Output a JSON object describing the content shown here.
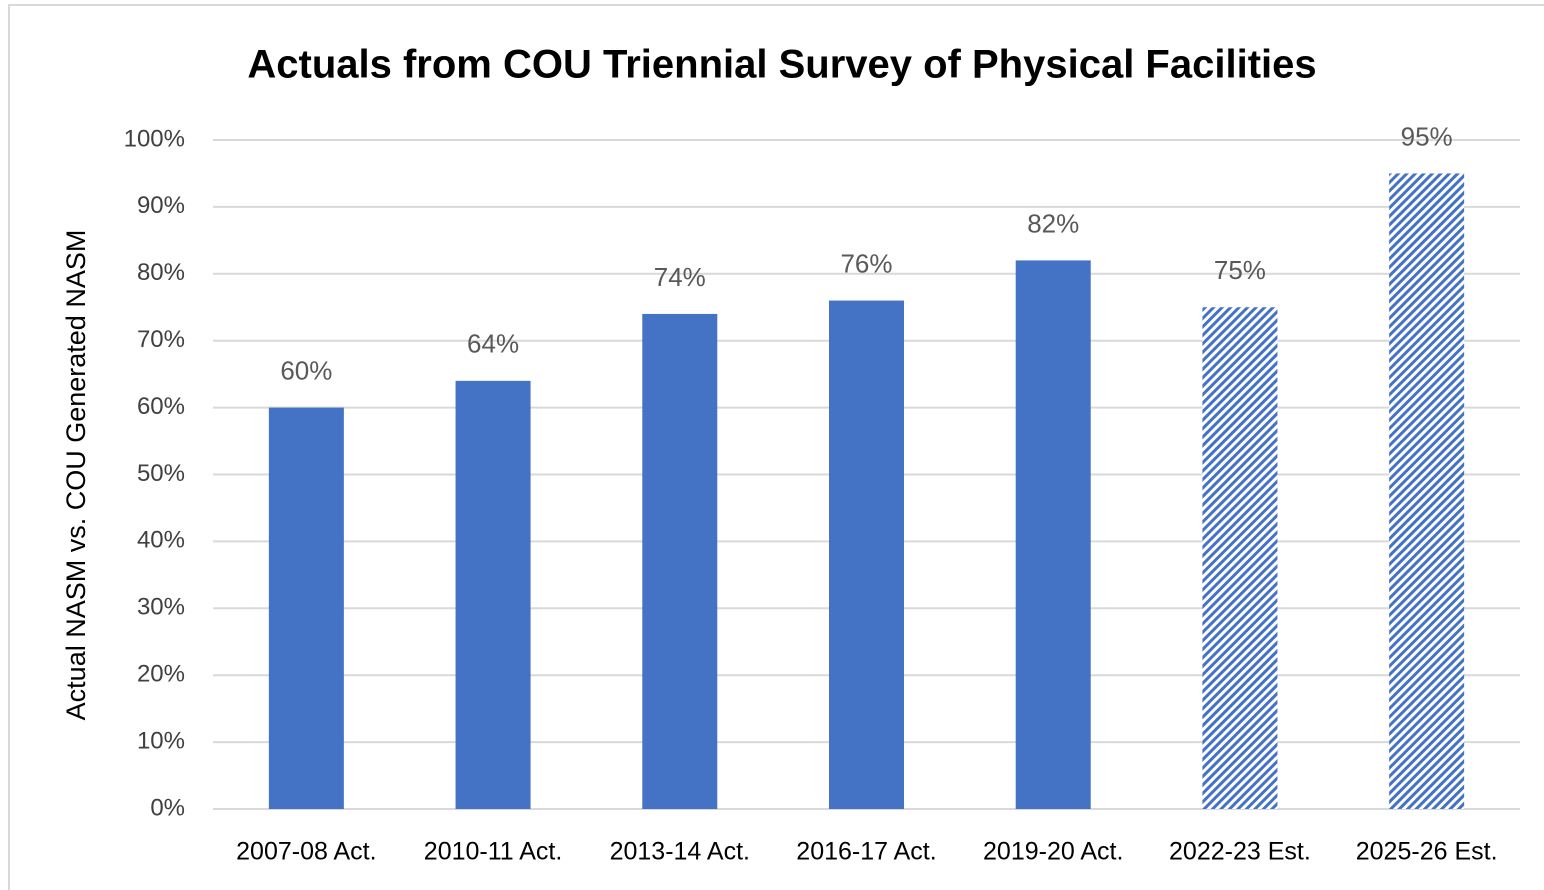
{
  "chart_data": {
    "type": "bar",
    "title": "Actuals from COU Triennial Survey of Physical Facilities",
    "y_label": "Actual NASM vs. COU Generated NASM",
    "categories": [
      "2007-08 Act.",
      "2010-11 Act.",
      "2013-14 Act.",
      "2016-17 Act.",
      "2019-20 Act.",
      "2022-23 Est.",
      "2025-26 Est."
    ],
    "values": [
      60,
      64,
      74,
      76,
      82,
      75,
      95
    ],
    "value_labels": [
      "60%",
      "64%",
      "74%",
      "76%",
      "82%",
      "75%",
      "95%"
    ],
    "hatched": [
      false,
      false,
      false,
      false,
      false,
      true,
      true
    ],
    "color": "#4472c4",
    "ylim": [
      0,
      100
    ],
    "yticks": [
      {
        "value": 0,
        "label": "0%"
      },
      {
        "value": 10,
        "label": "10%"
      },
      {
        "value": 20,
        "label": "20%"
      },
      {
        "value": 30,
        "label": "30%"
      },
      {
        "value": 40,
        "label": "40%"
      },
      {
        "value": 50,
        "label": "50%"
      },
      {
        "value": 60,
        "label": "60%"
      },
      {
        "value": 70,
        "label": "70%"
      },
      {
        "value": 80,
        "label": "80%"
      },
      {
        "value": 90,
        "label": "90%"
      },
      {
        "value": 100,
        "label": "100%"
      }
    ],
    "grid": true
  }
}
